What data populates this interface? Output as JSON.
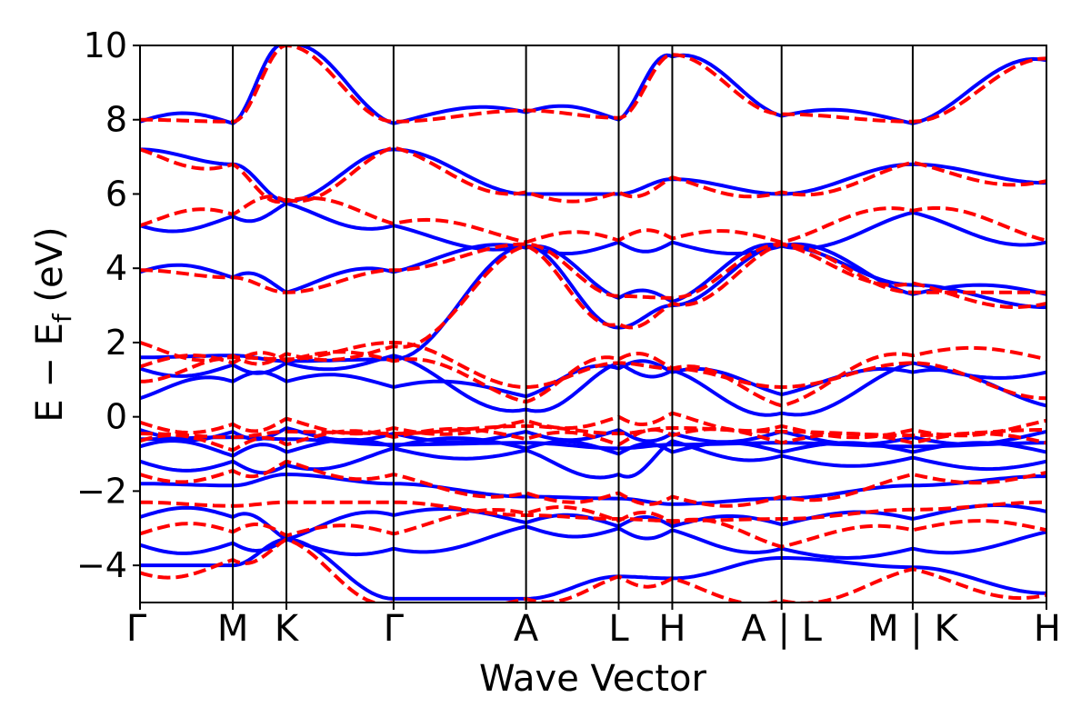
{
  "chart_data": {
    "type": "line",
    "title": "",
    "xlabel": "Wave Vector",
    "ylabel": "E − E",
    "ylabel_sub": "f",
    "ylabel_unit": " (eV)",
    "ylim": [
      -5,
      10
    ],
    "yticks": [
      {
        "value": -4,
        "label": "−4"
      },
      {
        "value": -2,
        "label": "−2"
      },
      {
        "value": 0,
        "label": "0"
      },
      {
        "value": 2,
        "label": "2"
      },
      {
        "value": 4,
        "label": "4"
      },
      {
        "value": 6,
        "label": "6"
      },
      {
        "value": 8,
        "label": "8"
      },
      {
        "value": 10,
        "label": "10"
      }
    ],
    "xlim": [
      0,
      1
    ],
    "kpoints": [
      {
        "label": "Γ",
        "x": 0.0
      },
      {
        "label": "M",
        "x": 0.1447
      },
      {
        "label": "K",
        "x": 0.2282
      },
      {
        "label": "Γ",
        "x": 0.3952
      },
      {
        "label": "A",
        "x": 0.6017
      },
      {
        "label": "L",
        "x": 0.7461
      },
      {
        "label": "H",
        "x": 0.8296
      },
      {
        "label": "A|L",
        "x": 1.0
      },
      {
        "label": "M|K",
        "x": 1.2044
      },
      {
        "label": "H",
        "x": 1.4128
      }
    ],
    "x_max": 1.4128,
    "grid": false,
    "series": [
      {
        "style": "solid",
        "color": "#0000ff",
        "note_visual": "bands, blue solid",
        "bands": [
          [
            -0.35,
            -0.4,
            -0.3,
            -0.45,
            -0.4,
            -0.35,
            -0.45,
            -0.4,
            -0.55,
            -0.4
          ],
          [
            -0.6,
            -0.55,
            -0.6,
            -0.75,
            -0.7,
            -0.85,
            -0.75,
            -0.7,
            -0.8,
            -0.7
          ],
          [
            -0.8,
            -1.05,
            -0.95,
            -0.8,
            -0.85,
            -1.0,
            -0.95,
            -0.95,
            -0.95,
            -0.95
          ],
          [
            -1.2,
            -1.2,
            -1.3,
            -0.85,
            -0.9,
            -1.55,
            -0.65,
            -1.05,
            -1.1,
            -1.2
          ],
          [
            -1.8,
            -1.85,
            -1.55,
            -1.8,
            -2.15,
            -2.2,
            -2.35,
            -2.2,
            -1.85,
            -1.6
          ],
          [
            -2.7,
            -2.7,
            -3.3,
            -2.65,
            -2.85,
            -2.95,
            -2.95,
            -2.9,
            -2.75,
            -2.55
          ],
          [
            -3.45,
            -3.4,
            -3.3,
            -3.55,
            -2.95,
            -3.0,
            -3.05,
            -3.55,
            -3.55,
            -3.1
          ],
          [
            -4.0,
            -4.0,
            -3.3,
            -4.9,
            -4.9,
            -4.3,
            -4.35,
            -3.8,
            -4.05,
            -4.75
          ],
          [
            0.5,
            0.95,
            0.95,
            0.8,
            0.55,
            1.3,
            1.2,
            0.6,
            1.2,
            0.3
          ],
          [
            1.3,
            1.4,
            1.45,
            1.65,
            0.2,
            1.45,
            1.25,
            0.1,
            1.45,
            1.2
          ],
          [
            1.6,
            1.65,
            1.5,
            1.55,
            4.6,
            2.4,
            3.0,
            4.6,
            3.55,
            2.95
          ],
          [
            3.9,
            3.75,
            3.35,
            3.9,
            4.55,
            3.2,
            3.1,
            4.6,
            3.3,
            3.3
          ],
          [
            5.15,
            5.4,
            5.75,
            5.15,
            4.6,
            4.7,
            4.7,
            4.6,
            5.5,
            4.7
          ],
          [
            7.2,
            6.8,
            5.8,
            7.2,
            6.0,
            6.0,
            6.4,
            6.0,
            6.8,
            6.3
          ],
          [
            7.95,
            7.9,
            10.0,
            7.9,
            8.2,
            8.0,
            9.7,
            8.1,
            7.9,
            9.6
          ]
        ]
      },
      {
        "style": "dashed",
        "color": "#ff0000",
        "note_visual": "bands, red dashed",
        "bands": [
          [
            -0.15,
            -0.2,
            -0.05,
            -0.3,
            -0.1,
            0.0,
            0.1,
            -0.25,
            -0.35,
            -0.1
          ],
          [
            -0.45,
            -0.55,
            -0.4,
            -0.45,
            -0.25,
            -0.45,
            -0.3,
            -0.4,
            -0.5,
            -0.35
          ],
          [
            -0.65,
            -0.9,
            -0.75,
            -0.55,
            -0.6,
            -0.75,
            -0.5,
            -0.7,
            -0.7,
            -0.7
          ],
          [
            -1.55,
            -1.45,
            -1.2,
            -1.55,
            -2.05,
            -2.05,
            -2.15,
            -2.15,
            -1.55,
            -1.5
          ],
          [
            -2.3,
            -2.4,
            -2.3,
            -2.3,
            -2.65,
            -2.75,
            -2.8,
            -2.75,
            -2.5,
            -2.3
          ],
          [
            -3.15,
            -3.1,
            -3.2,
            -3.15,
            -2.6,
            -2.8,
            -2.85,
            -3.5,
            -3.05,
            -3.05
          ],
          [
            -4.2,
            -3.85,
            -3.3,
            -5.0,
            -4.9,
            -4.3,
            -4.35,
            -4.95,
            -4.1,
            -4.8
          ],
          [
            0.95,
            1.6,
            1.55,
            2.0,
            0.8,
            1.45,
            1.3,
            0.8,
            1.45,
            0.5
          ],
          [
            1.35,
            1.45,
            1.5,
            1.5,
            0.4,
            1.55,
            1.3,
            0.3,
            1.65,
            1.55
          ],
          [
            2.0,
            1.65,
            1.7,
            1.9,
            4.6,
            2.5,
            3.05,
            4.65,
            3.6,
            3.05
          ],
          [
            3.95,
            3.75,
            3.35,
            3.95,
            4.65,
            3.25,
            3.2,
            4.65,
            3.35,
            3.35
          ],
          [
            5.15,
            5.45,
            5.8,
            5.2,
            4.7,
            4.75,
            4.8,
            4.7,
            5.55,
            4.75
          ],
          [
            7.2,
            6.8,
            5.85,
            7.25,
            6.05,
            6.05,
            6.45,
            6.05,
            6.85,
            6.35
          ],
          [
            8.0,
            7.95,
            10.0,
            7.95,
            8.25,
            8.05,
            9.75,
            8.15,
            7.95,
            9.65
          ]
        ]
      }
    ]
  }
}
